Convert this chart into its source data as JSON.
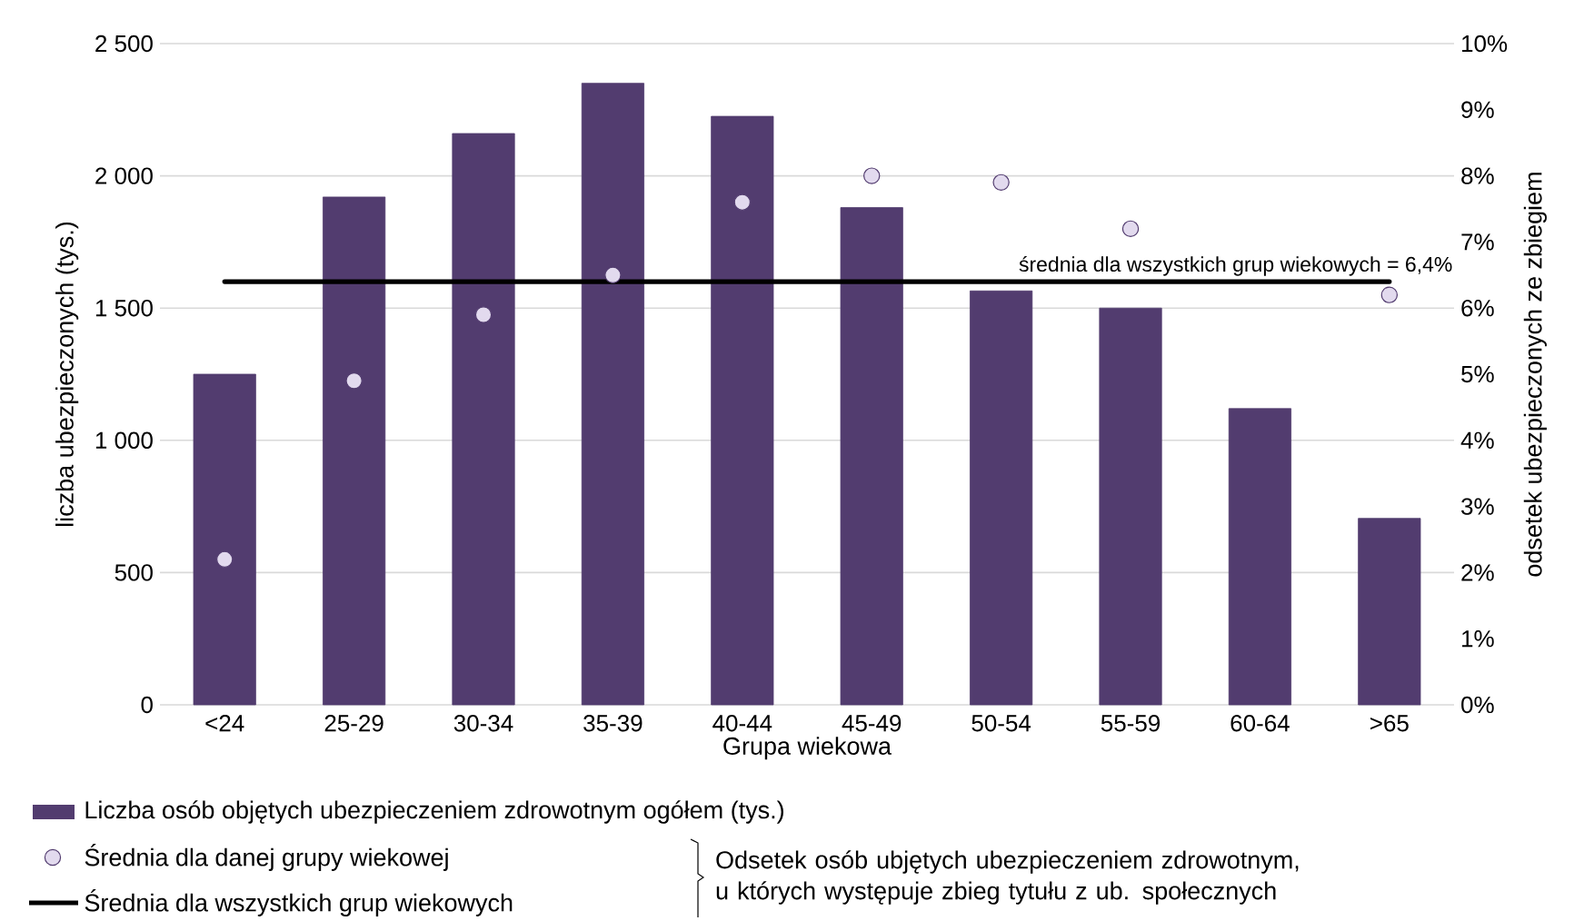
{
  "chart_data": {
    "type": "bar",
    "xlabel": "Grupa wiekowa",
    "ylabel": "liczba ubezpieczonych (tys.)",
    "y2label": "odsetek ubezpieczonych ze zbiegiem",
    "categories": [
      "<24",
      "25-29",
      "30-34",
      "35-39",
      "40-44",
      "45-49",
      "50-54",
      "55-59",
      "60-64",
      ">65"
    ],
    "series": [
      {
        "name": "Liczba osób objętych ubezpieczeniem zdrowotnym ogółem (tys.)",
        "color": "#523c6f",
        "values": [
          1250,
          1920,
          2160,
          2350,
          2225,
          1880,
          1565,
          1500,
          1120,
          705
        ]
      },
      {
        "name": "Średnia dla danej grupy wiekowej",
        "type": "scatter",
        "axis": "y2",
        "color": "#e2daee",
        "values": [
          2.2,
          4.9,
          5.9,
          6.5,
          7.6,
          8.0,
          7.9,
          7.2,
          null,
          6.2
        ]
      },
      {
        "name": "Średnia dla wszystkich grup wiekowych",
        "type": "line",
        "axis": "y2",
        "color": "#000000",
        "values": [
          6.4,
          6.4,
          6.4,
          6.4,
          6.4,
          6.4,
          6.4,
          6.4,
          6.4,
          6.4
        ]
      }
    ],
    "ylim": [
      0,
      2500
    ],
    "yticks": [
      0,
      500,
      {
        "value": 1000,
        "label": "1 000"
      },
      {
        "value": 1500,
        "label": "1 500"
      },
      {
        "value": 2000,
        "label": "2 000"
      },
      {
        "value": 2500,
        "label": "2 500"
      }
    ],
    "y2lim": [
      0,
      10
    ],
    "y2ticks": [
      {
        "value": 0,
        "label": "0%"
      },
      {
        "value": 1,
        "label": "1%"
      },
      {
        "value": 2,
        "label": "2%"
      },
      {
        "value": 3,
        "label": "3%"
      },
      {
        "value": 4,
        "label": "4%"
      },
      {
        "value": 5,
        "label": "5%"
      },
      {
        "value": 6,
        "label": "6%"
      },
      {
        "value": 7,
        "label": "7%"
      },
      {
        "value": 8,
        "label": "8%"
      },
      {
        "value": 9,
        "label": "9%"
      },
      {
        "value": 10,
        "label": "10%"
      }
    ],
    "grid": "y",
    "legend": "bottom left",
    "annotations": [
      "średnia dla wszystkich grup wiekowych = 6,4%",
      "Odsetek osób ubjętych ubezpieczeniem zdrowotnym, u których występuje zbieg tytułu z ub. społecznych"
    ]
  }
}
